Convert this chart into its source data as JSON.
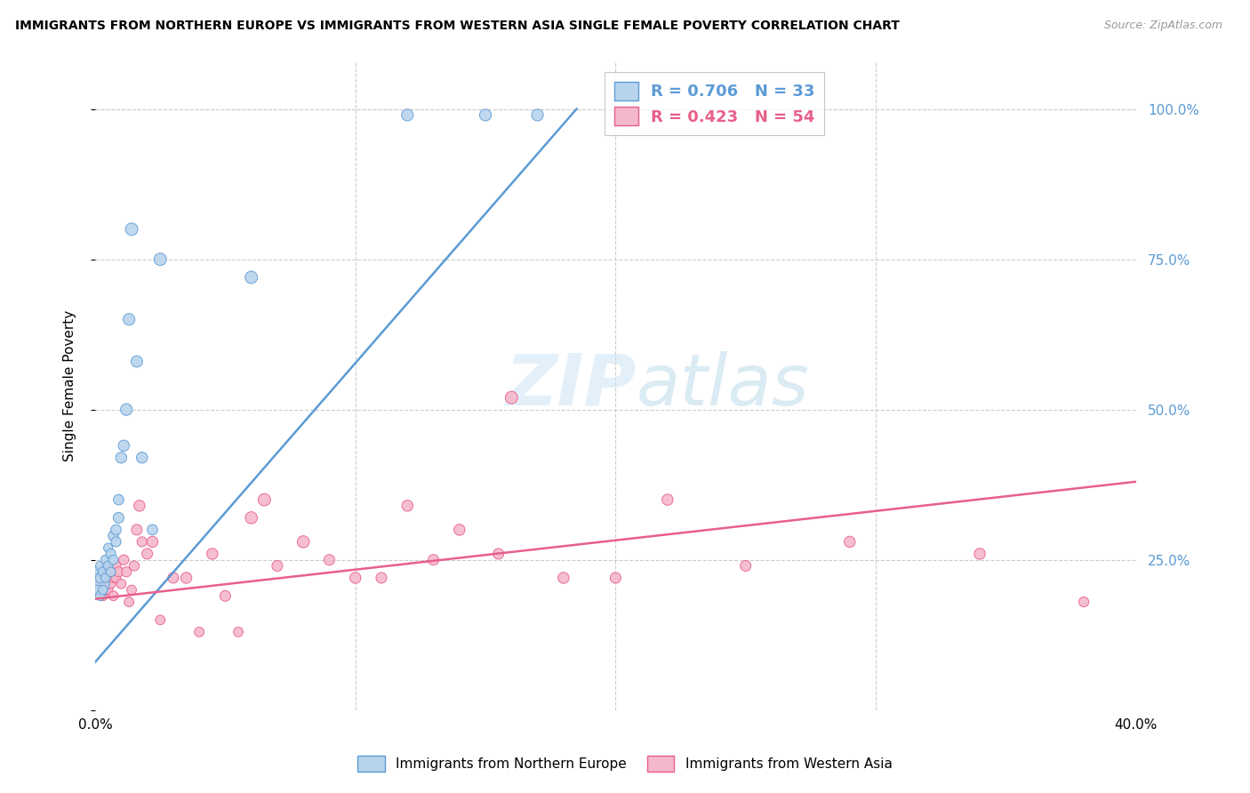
{
  "title": "IMMIGRANTS FROM NORTHERN EUROPE VS IMMIGRANTS FROM WESTERN ASIA SINGLE FEMALE POVERTY CORRELATION CHART",
  "source": "Source: ZipAtlas.com",
  "ylabel": "Single Female Poverty",
  "xlim": [
    0.0,
    0.4
  ],
  "ylim": [
    0.0,
    1.08
  ],
  "yticks": [
    0.0,
    0.25,
    0.5,
    0.75,
    1.0
  ],
  "ytick_labels": [
    "",
    "25.0%",
    "50.0%",
    "75.0%",
    "100.0%"
  ],
  "xticks": [
    0.0,
    0.1,
    0.2,
    0.3,
    0.4
  ],
  "xtick_labels": [
    "0.0%",
    "",
    "",
    "",
    "40.0%"
  ],
  "blue_R": 0.706,
  "blue_N": 33,
  "pink_R": 0.423,
  "pink_N": 54,
  "blue_fill_color": "#b8d4ed",
  "blue_edge_color": "#5b9bd5",
  "blue_line_color": "#5b9bd5",
  "pink_fill_color": "#f4b8cc",
  "pink_edge_color": "#e8608a",
  "pink_line_color": "#e8608a",
  "right_tick_color": "#5b9bd5",
  "watermark_color": "#cce4f5",
  "blue_line_x0": 0.0,
  "blue_line_y0": 0.08,
  "blue_line_x1": 0.185,
  "blue_line_y1": 1.0,
  "pink_line_x0": 0.0,
  "pink_line_y0": 0.185,
  "pink_line_x1": 0.4,
  "pink_line_y1": 0.38,
  "blue_scatter_x": [
    0.001,
    0.001,
    0.001,
    0.002,
    0.002,
    0.002,
    0.003,
    0.003,
    0.004,
    0.004,
    0.005,
    0.005,
    0.006,
    0.006,
    0.007,
    0.007,
    0.008,
    0.008,
    0.009,
    0.009,
    0.01,
    0.011,
    0.012,
    0.013,
    0.014,
    0.016,
    0.018,
    0.022,
    0.025,
    0.06,
    0.12,
    0.15,
    0.17
  ],
  "blue_scatter_y": [
    0.21,
    0.23,
    0.2,
    0.22,
    0.24,
    0.19,
    0.23,
    0.2,
    0.25,
    0.22,
    0.24,
    0.27,
    0.26,
    0.23,
    0.29,
    0.25,
    0.3,
    0.28,
    0.32,
    0.35,
    0.42,
    0.44,
    0.5,
    0.65,
    0.8,
    0.58,
    0.42,
    0.3,
    0.75,
    0.72,
    0.99,
    0.99,
    0.99
  ],
  "blue_scatter_sizes": [
    350,
    80,
    60,
    70,
    60,
    60,
    60,
    55,
    60,
    55,
    60,
    55,
    65,
    60,
    70,
    60,
    70,
    65,
    75,
    70,
    80,
    80,
    90,
    90,
    100,
    85,
    80,
    70,
    100,
    100,
    90,
    90,
    90
  ],
  "pink_scatter_x": [
    0.001,
    0.001,
    0.002,
    0.002,
    0.003,
    0.003,
    0.004,
    0.004,
    0.005,
    0.005,
    0.006,
    0.006,
    0.007,
    0.007,
    0.008,
    0.008,
    0.009,
    0.01,
    0.011,
    0.012,
    0.013,
    0.014,
    0.015,
    0.016,
    0.017,
    0.018,
    0.02,
    0.022,
    0.025,
    0.03,
    0.035,
    0.04,
    0.045,
    0.05,
    0.055,
    0.06,
    0.065,
    0.07,
    0.08,
    0.09,
    0.1,
    0.11,
    0.12,
    0.13,
    0.14,
    0.155,
    0.16,
    0.18,
    0.2,
    0.22,
    0.25,
    0.29,
    0.34,
    0.38
  ],
  "pink_scatter_y": [
    0.22,
    0.2,
    0.23,
    0.21,
    0.22,
    0.19,
    0.2,
    0.24,
    0.22,
    0.2,
    0.21,
    0.23,
    0.22,
    0.19,
    0.24,
    0.22,
    0.23,
    0.21,
    0.25,
    0.23,
    0.18,
    0.2,
    0.24,
    0.3,
    0.34,
    0.28,
    0.26,
    0.28,
    0.15,
    0.22,
    0.22,
    0.13,
    0.26,
    0.19,
    0.13,
    0.32,
    0.35,
    0.24,
    0.28,
    0.25,
    0.22,
    0.22,
    0.34,
    0.25,
    0.3,
    0.26,
    0.52,
    0.22,
    0.22,
    0.35,
    0.24,
    0.28,
    0.26,
    0.18
  ],
  "pink_scatter_sizes": [
    200,
    60,
    70,
    60,
    65,
    60,
    60,
    65,
    60,
    60,
    60,
    60,
    60,
    60,
    65,
    60,
    65,
    60,
    65,
    65,
    60,
    60,
    65,
    75,
    80,
    65,
    75,
    80,
    60,
    75,
    80,
    60,
    80,
    75,
    60,
    95,
    100,
    75,
    95,
    75,
    80,
    75,
    80,
    75,
    80,
    75,
    100,
    80,
    75,
    80,
    75,
    80,
    80,
    65
  ]
}
